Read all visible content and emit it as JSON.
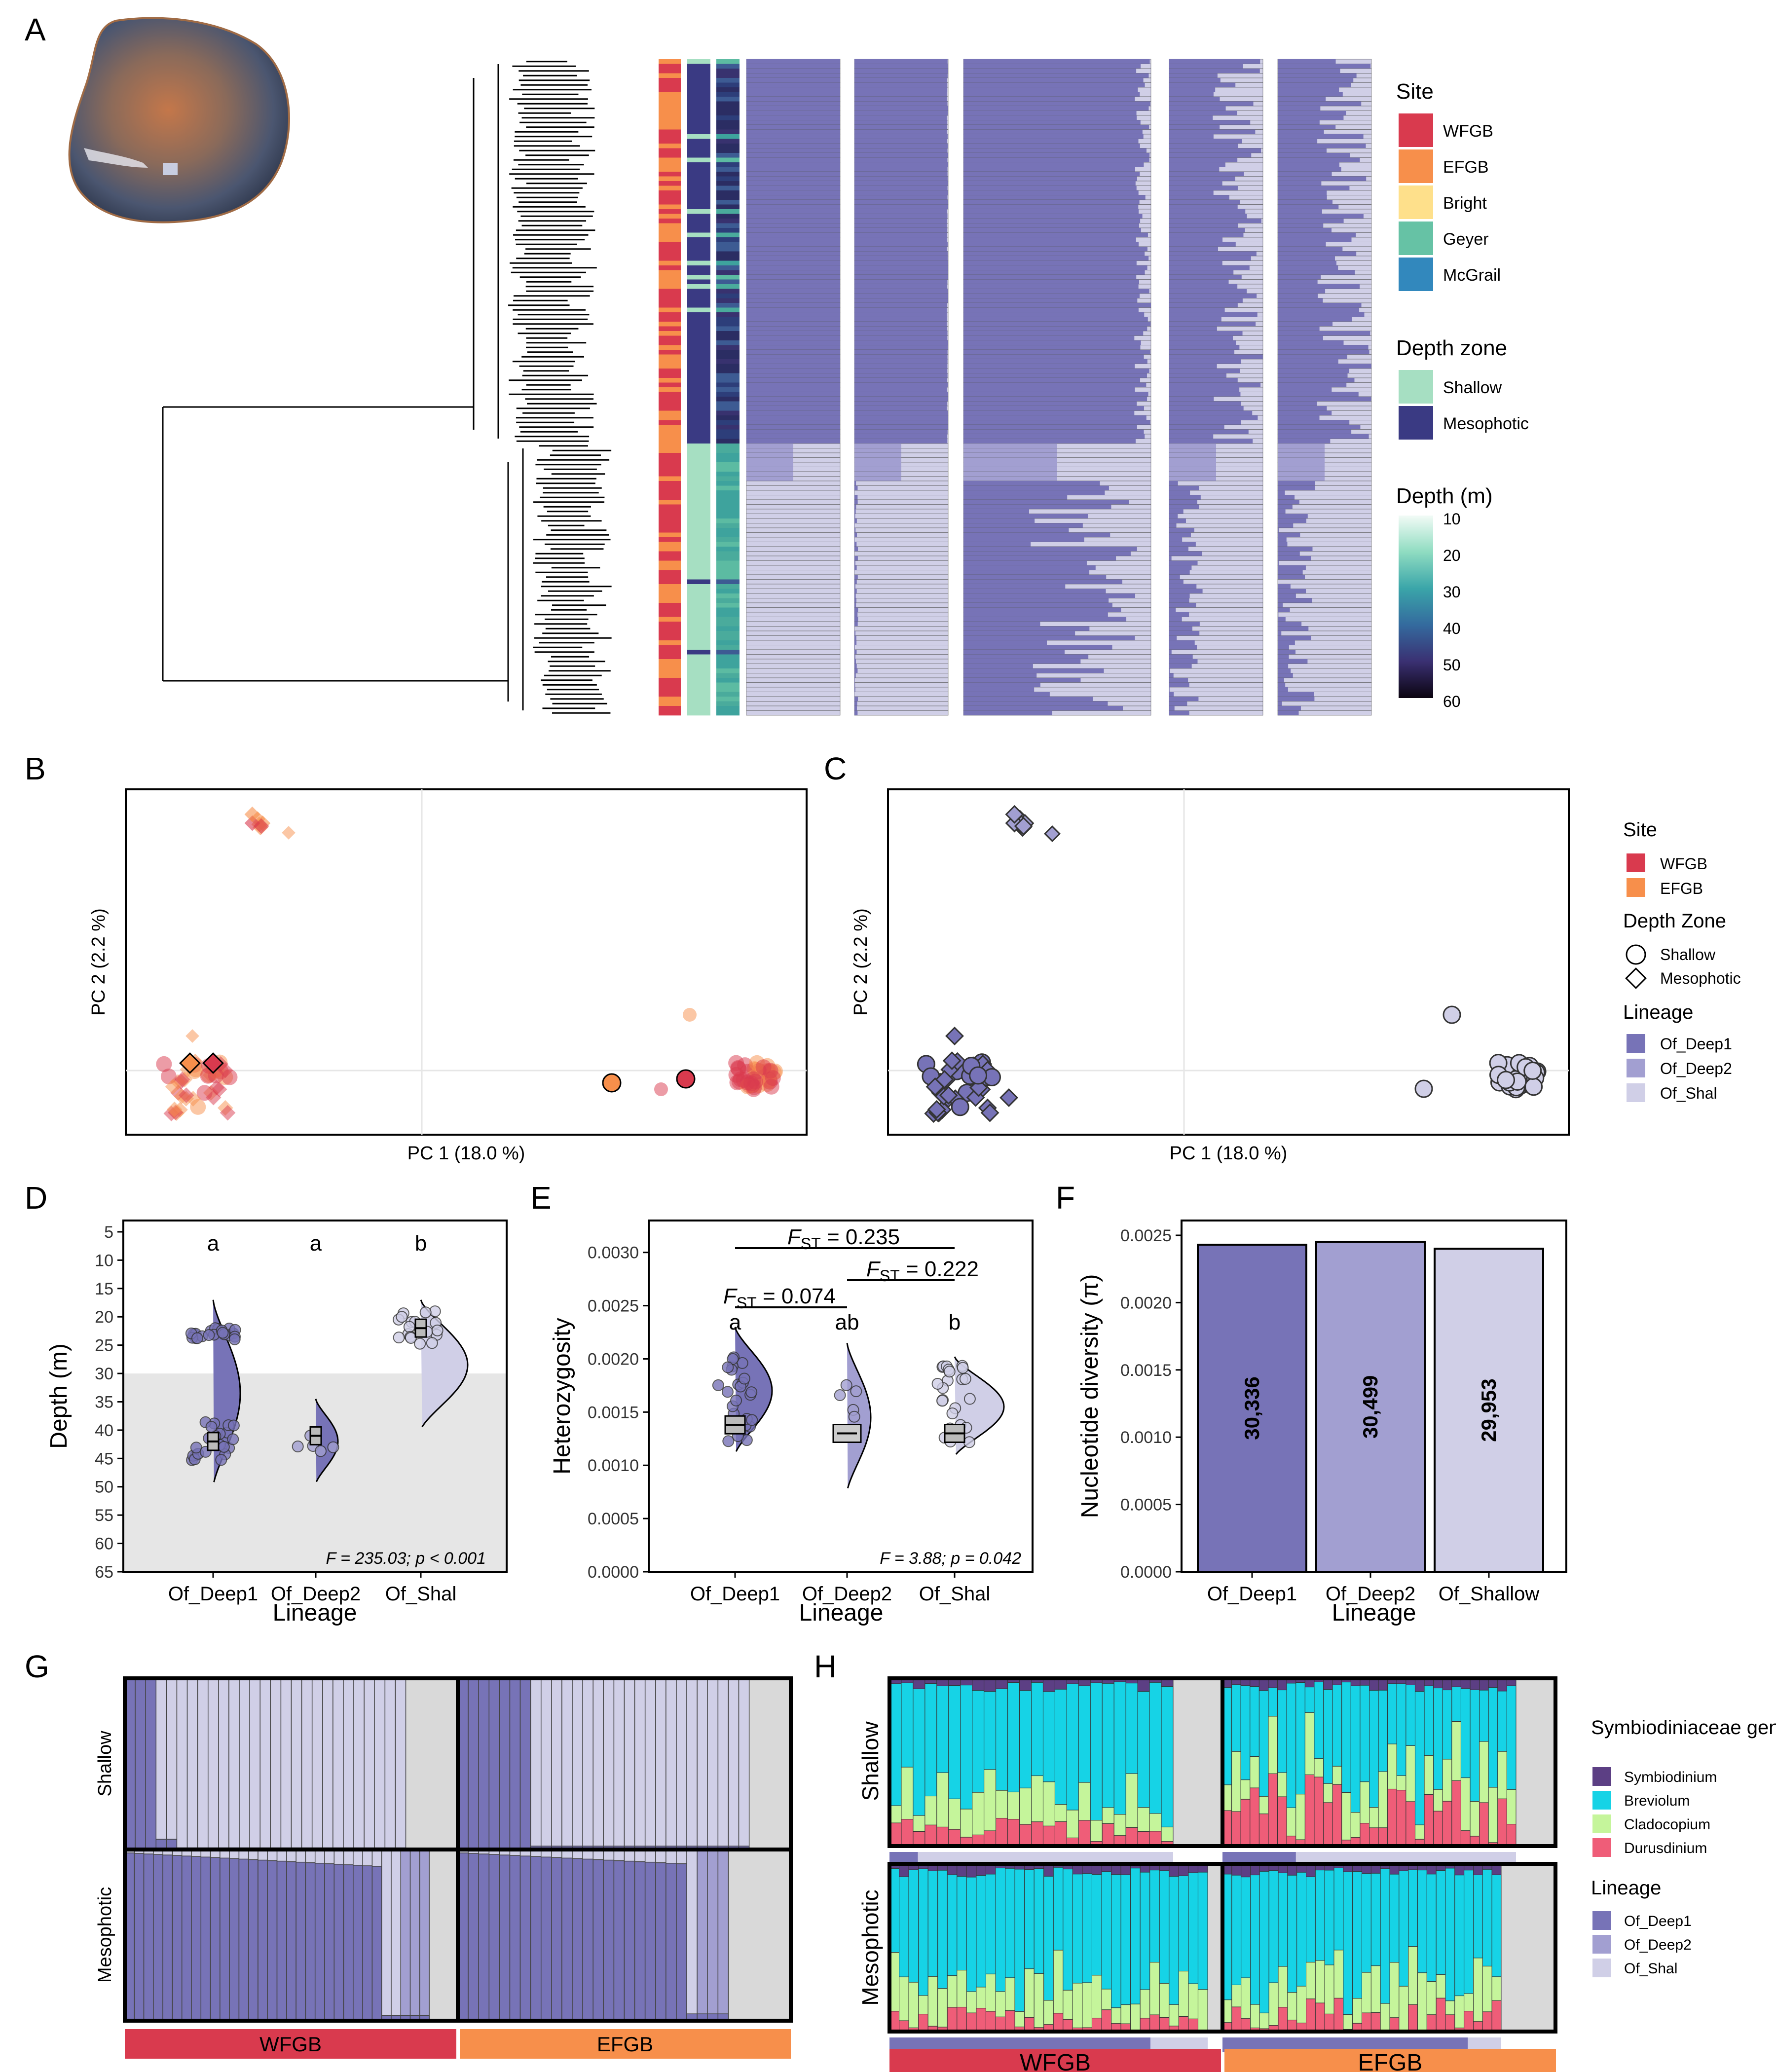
{
  "panel_letters": [
    "A",
    "B",
    "C",
    "D",
    "E",
    "F",
    "G",
    "H"
  ],
  "colors": {
    "WFGB": "#d93a4e",
    "EFGB": "#f78f4b",
    "Bright": "#fee08b",
    "Geyer": "#66c2a5",
    "McGrail": "#3288bd",
    "Shallow": "#a6dfc2",
    "Mesophotic": "#3a3a83",
    "Of_Deep1": "#7773b7",
    "Of_Deep2": "#a29fd1",
    "Of_Shal": "#d0cfe7",
    "Symbiodinium": "#5c3f84",
    "Breviolum": "#16d3e6",
    "Cladocopium": "#c5f59b",
    "Durusdinium": "#ef5d78",
    "empty": "#d9d9d9"
  },
  "icons": [
    "coral-photo-icon"
  ],
  "panelA": {
    "legend_site": {
      "title": "Site",
      "items": [
        "WFGB",
        "EFGB",
        "Bright",
        "Geyer",
        "McGrail"
      ]
    },
    "legend_depth_zone": {
      "title": "Depth zone",
      "items": [
        "Shallow",
        "Mesophotic"
      ]
    },
    "legend_depth": {
      "title": "Depth (m)",
      "ticks": [
        "10",
        "20",
        "30",
        "40",
        "50",
        "60"
      ]
    }
  },
  "panelB": {
    "xlabel": "PC 1 (18.0 %)",
    "ylabel": "PC 2 (2.2 %)"
  },
  "panelC": {
    "xlabel": "PC 1 (18.0 %)",
    "ylabel": "PC 2 (2.2 %)"
  },
  "legend_BC": {
    "site_title": "Site",
    "site_items": [
      "WFGB",
      "EFGB"
    ],
    "zone_title": "Depth Zone",
    "zone_items": [
      "Shallow",
      "Mesophotic"
    ],
    "lineage_title": "Lineage",
    "lineage_items": [
      "Of_Deep1",
      "Of_Deep2",
      "Of_Shal"
    ]
  },
  "chart_data": [
    {
      "panel": "D",
      "type": "violin",
      "categories": [
        "Of_Deep1",
        "Of_Deep2",
        "Of_Shal"
      ],
      "xlabel": "Lineage",
      "ylabel": "Depth (m)",
      "yticks": [
        "5",
        "10",
        "15",
        "20",
        "25",
        "30",
        "35",
        "40",
        "45",
        "50",
        "55",
        "60",
        "65"
      ],
      "ylim": [
        65,
        3
      ],
      "medians": [
        42,
        41,
        22
      ],
      "letters": [
        "a",
        "a",
        "b"
      ],
      "shading_from": 30,
      "stat_text": "F = 235.03;  p < 0.001"
    },
    {
      "panel": "E",
      "type": "violin",
      "categories": [
        "Of_Deep1",
        "Of_Deep2",
        "Of_Shal"
      ],
      "xlabel": "Lineage",
      "ylabel": "Heterozygosity",
      "yticks": [
        "0.0000",
        "0.0005",
        "0.0010",
        "0.0015",
        "0.0020",
        "0.0025",
        "0.0030"
      ],
      "ylim": [
        0,
        0.0033
      ],
      "medians": [
        0.00138,
        0.0013,
        0.0013
      ],
      "letters": [
        "a",
        "ab",
        "b"
      ],
      "fst": [
        {
          "pair": "Of_Deep1 - Of_Shal",
          "label": "F",
          "sub": "ST",
          "value": "= 0.235"
        },
        {
          "pair": "Of_Deep2 - Of_Shal",
          "label": "F",
          "sub": "ST",
          "value": "= 0.222"
        },
        {
          "pair": "Of_Deep1 - Of_Deep2",
          "label": "F",
          "sub": "ST",
          "value": "= 0.074"
        }
      ],
      "stat_text": "F =  3.88;  p =  0.042"
    },
    {
      "panel": "F",
      "type": "bar",
      "categories": [
        "Of_Deep1",
        "Of_Deep2",
        "Of_Shallow"
      ],
      "values": [
        0.00243,
        0.00245,
        0.0024
      ],
      "bar_labels": [
        "30,336",
        "30,499",
        "29,953"
      ],
      "xlabel": "Lineage",
      "ylabel": "Nucleotide diversity (π)",
      "yticks": [
        "0.0000",
        "0.0005",
        "0.0010",
        "0.0015",
        "0.0020",
        "0.0025"
      ],
      "ylim": [
        0,
        0.0025
      ]
    },
    {
      "panel": "G",
      "type": "bar",
      "rows": [
        "Shallow",
        "Mesophotic"
      ],
      "columns": [
        "WFGB",
        "EFGB"
      ]
    },
    {
      "panel": "H",
      "type": "bar",
      "rows": [
        "Shallow",
        "Mesophotic"
      ],
      "columns": [
        "WFGB",
        "EFGB"
      ],
      "legend_genus_title": "Symbiodiniaceae genus",
      "genera": [
        "Symbiodinium",
        "Breviolum",
        "Cladocopium",
        "Durusdinium"
      ],
      "legend_lineage_title": "Lineage",
      "lineages": [
        "Of_Deep1",
        "Of_Deep2",
        "Of_Shal"
      ]
    }
  ]
}
